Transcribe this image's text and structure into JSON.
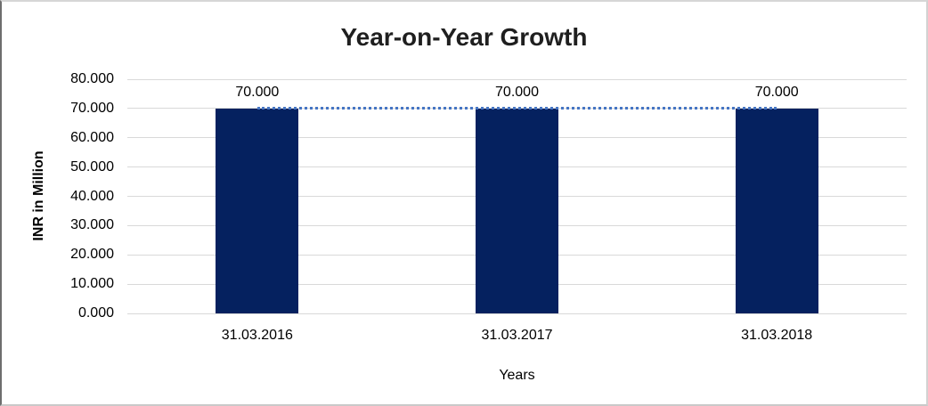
{
  "chart_data": {
    "type": "bar",
    "title": "Year-on-Year Growth",
    "xlabel": "Years",
    "ylabel": "INR in Million",
    "categories": [
      "31.03.2016",
      "31.03.2017",
      "31.03.2018"
    ],
    "values": [
      70,
      70,
      70
    ],
    "data_labels": [
      "70.000",
      "70.000",
      "70.000"
    ],
    "ylim": [
      0,
      80
    ],
    "ytick_step": 10,
    "ytick_labels": [
      "0.000",
      "10.000",
      "20.000",
      "30.000",
      "40.000",
      "50.000",
      "60.000",
      "70.000",
      "80.000"
    ],
    "grid": true,
    "legend_position": "none",
    "trendline": {
      "style": "dotted",
      "color": "#4575c4",
      "values": [
        70,
        70,
        70
      ]
    },
    "colors": {
      "bar": "#05215f",
      "gridline": "#d9d9d9",
      "axis_text": "#000000",
      "title_text": "#1f1f1f"
    }
  }
}
